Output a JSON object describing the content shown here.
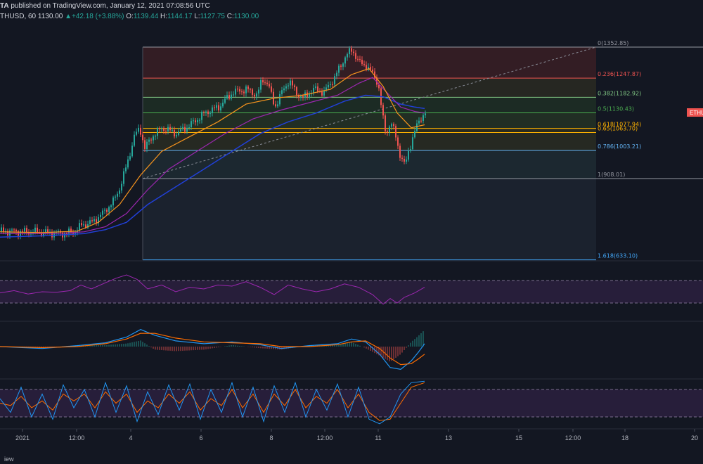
{
  "header": {
    "line1_prefix": "TA",
    "line1_text": " published on TradingView.com, January 12, 2021 07:08:56 UTC",
    "symbol": "THUSD, 60",
    "last": "1130.00",
    "change": "+42.18 (+3.88%)",
    "o_label": "O:",
    "o_value": "1139.44",
    "h_label": "H:",
    "h_value": "1144.17",
    "l_label": "L:",
    "l_value": "1127.75",
    "c_label": "C:",
    "c_value": "1130.00"
  },
  "colors": {
    "background": "#131722",
    "up_candle": "#26a69a",
    "down_candle": "#ef5350",
    "ema_fast": "#f7941d",
    "ema_mid": "#9c27b0",
    "ema_slow": "#2140d8",
    "rsi": "#9c27b0",
    "macd": "#2196f3",
    "signal": "#ff6d00"
  },
  "price_tag": "ETHU",
  "footer_text": "iew",
  "chart_data": {
    "type": "candlestick",
    "ylim": [
      620,
      1400
    ],
    "fib_levels": [
      {
        "ratio": "0",
        "price": "1352.85",
        "color": "#9598a1"
      },
      {
        "ratio": "0.236",
        "price": "1247.87",
        "color": "#ef5350"
      },
      {
        "ratio": "0.382",
        "price": "1182.92",
        "color": "#81c784"
      },
      {
        "ratio": "0.5",
        "price": "1130.43",
        "color": "#4caf50"
      },
      {
        "ratio": "0.618",
        "price": "1077.94",
        "color": "#ffb300"
      },
      {
        "ratio": "0.65",
        "price": "1063.70",
        "color": "#ffb300"
      },
      {
        "ratio": "0.786",
        "price": "1003.21",
        "color": "#64b5f6"
      },
      {
        "ratio": "1",
        "price": "908.01",
        "color": "#9598a1"
      },
      {
        "ratio": "1.618",
        "price": "633.10",
        "color": "#42a5f5"
      }
    ],
    "x_ticks": [
      "2021",
      "12:00",
      "4",
      "6",
      "8",
      "12:00",
      "11",
      "13",
      "15",
      "12:00",
      "18",
      "20"
    ],
    "price_path": [
      [
        0,
        730
      ],
      [
        40,
        728
      ],
      [
        90,
        722
      ],
      [
        105,
        728
      ],
      [
        115,
        750
      ],
      [
        130,
        760
      ],
      [
        145,
        790
      ],
      [
        160,
        830
      ],
      [
        170,
        880
      ],
      [
        180,
        960
      ],
      [
        190,
        1050
      ],
      [
        198,
        1080
      ],
      [
        205,
        1010
      ],
      [
        215,
        1050
      ],
      [
        230,
        1080
      ],
      [
        250,
        1060
      ],
      [
        270,
        1090
      ],
      [
        290,
        1130
      ],
      [
        310,
        1150
      ],
      [
        330,
        1200
      ],
      [
        350,
        1210
      ],
      [
        365,
        1190
      ],
      [
        372,
        1245
      ],
      [
        380,
        1230
      ],
      [
        390,
        1150
      ],
      [
        400,
        1200
      ],
      [
        410,
        1240
      ],
      [
        420,
        1200
      ],
      [
        430,
        1180
      ],
      [
        445,
        1210
      ],
      [
        460,
        1200
      ],
      [
        475,
        1250
      ],
      [
        490,
        1320
      ],
      [
        500,
        1345
      ],
      [
        510,
        1300
      ],
      [
        520,
        1290
      ],
      [
        530,
        1260
      ],
      [
        537,
        1230
      ],
      [
        543,
        1120
      ],
      [
        548,
        1060
      ],
      [
        555,
        1100
      ],
      [
        562,
        1050
      ],
      [
        568,
        990
      ],
      [
        575,
        950
      ],
      [
        580,
        1000
      ],
      [
        588,
        1060
      ],
      [
        596,
        1110
      ],
      [
        604,
        1130
      ]
    ],
    "ema_fast": [
      [
        0,
        728
      ],
      [
        60,
        725
      ],
      [
        110,
        730
      ],
      [
        140,
        760
      ],
      [
        170,
        820
      ],
      [
        200,
        920
      ],
      [
        230,
        1000
      ],
      [
        270,
        1050
      ],
      [
        310,
        1100
      ],
      [
        350,
        1160
      ],
      [
        390,
        1180
      ],
      [
        430,
        1190
      ],
      [
        470,
        1210
      ],
      [
        500,
        1260
      ],
      [
        525,
        1280
      ],
      [
        545,
        1220
      ],
      [
        565,
        1130
      ],
      [
        585,
        1080
      ],
      [
        604,
        1090
      ]
    ],
    "ema_mid": [
      [
        0,
        722
      ],
      [
        80,
        722
      ],
      [
        120,
        728
      ],
      [
        150,
        745
      ],
      [
        180,
        790
      ],
      [
        210,
        870
      ],
      [
        240,
        940
      ],
      [
        280,
        1000
      ],
      [
        320,
        1060
      ],
      [
        360,
        1110
      ],
      [
        400,
        1140
      ],
      [
        440,
        1165
      ],
      [
        480,
        1190
      ],
      [
        510,
        1230
      ],
      [
        530,
        1250
      ],
      [
        550,
        1200
      ],
      [
        570,
        1150
      ],
      [
        590,
        1135
      ],
      [
        604,
        1130
      ]
    ],
    "ema_slow": [
      [
        0,
        710
      ],
      [
        70,
        715
      ],
      [
        120,
        722
      ],
      [
        150,
        735
      ],
      [
        180,
        760
      ],
      [
        210,
        820
      ],
      [
        250,
        880
      ],
      [
        290,
        940
      ],
      [
        330,
        1000
      ],
      [
        370,
        1060
      ],
      [
        410,
        1100
      ],
      [
        450,
        1130
      ],
      [
        490,
        1170
      ],
      [
        520,
        1190
      ],
      [
        545,
        1185
      ],
      [
        570,
        1160
      ],
      [
        590,
        1150
      ],
      [
        604,
        1145
      ]
    ],
    "rsi": [
      [
        0,
        48
      ],
      [
        20,
        52
      ],
      [
        40,
        46
      ],
      [
        60,
        50
      ],
      [
        80,
        49
      ],
      [
        100,
        52
      ],
      [
        115,
        62
      ],
      [
        130,
        55
      ],
      [
        150,
        66
      ],
      [
        165,
        74
      ],
      [
        180,
        80
      ],
      [
        195,
        72
      ],
      [
        210,
        55
      ],
      [
        230,
        62
      ],
      [
        250,
        50
      ],
      [
        270,
        58
      ],
      [
        290,
        55
      ],
      [
        310,
        62
      ],
      [
        330,
        60
      ],
      [
        350,
        68
      ],
      [
        370,
        58
      ],
      [
        390,
        45
      ],
      [
        410,
        62
      ],
      [
        430,
        55
      ],
      [
        450,
        50
      ],
      [
        470,
        55
      ],
      [
        490,
        64
      ],
      [
        510,
        58
      ],
      [
        530,
        45
      ],
      [
        545,
        28
      ],
      [
        555,
        38
      ],
      [
        565,
        30
      ],
      [
        575,
        40
      ],
      [
        590,
        48
      ],
      [
        604,
        58
      ]
    ],
    "macd": [
      [
        0,
        0
      ],
      [
        60,
        -2
      ],
      [
        110,
        1
      ],
      [
        150,
        4
      ],
      [
        180,
        10
      ],
      [
        200,
        18
      ],
      [
        220,
        12
      ],
      [
        250,
        6
      ],
      [
        290,
        3
      ],
      [
        330,
        5
      ],
      [
        370,
        2
      ],
      [
        400,
        -2
      ],
      [
        440,
        1
      ],
      [
        480,
        3
      ],
      [
        500,
        8
      ],
      [
        520,
        5
      ],
      [
        540,
        -8
      ],
      [
        555,
        -22
      ],
      [
        570,
        -24
      ],
      [
        585,
        -15
      ],
      [
        595,
        -6
      ],
      [
        604,
        3
      ]
    ],
    "signal": [
      [
        0,
        0
      ],
      [
        60,
        -1
      ],
      [
        110,
        0
      ],
      [
        150,
        3
      ],
      [
        180,
        8
      ],
      [
        200,
        14
      ],
      [
        220,
        14
      ],
      [
        250,
        9
      ],
      [
        290,
        5
      ],
      [
        330,
        4
      ],
      [
        370,
        3
      ],
      [
        400,
        0
      ],
      [
        440,
        0
      ],
      [
        480,
        2
      ],
      [
        500,
        5
      ],
      [
        520,
        6
      ],
      [
        540,
        -2
      ],
      [
        555,
        -12
      ],
      [
        570,
        -19
      ],
      [
        585,
        -18
      ],
      [
        595,
        -13
      ],
      [
        604,
        -8
      ]
    ],
    "stoch_k": [
      [
        0,
        60
      ],
      [
        15,
        30
      ],
      [
        30,
        85
      ],
      [
        45,
        20
      ],
      [
        60,
        70
      ],
      [
        75,
        15
      ],
      [
        90,
        90
      ],
      [
        105,
        40
      ],
      [
        120,
        80
      ],
      [
        135,
        20
      ],
      [
        150,
        95
      ],
      [
        165,
        30
      ],
      [
        180,
        88
      ],
      [
        195,
        10
      ],
      [
        210,
        75
      ],
      [
        225,
        25
      ],
      [
        240,
        90
      ],
      [
        255,
        35
      ],
      [
        270,
        92
      ],
      [
        285,
        15
      ],
      [
        300,
        80
      ],
      [
        315,
        30
      ],
      [
        330,
        95
      ],
      [
        345,
        20
      ],
      [
        360,
        85
      ],
      [
        375,
        10
      ],
      [
        390,
        88
      ],
      [
        405,
        30
      ],
      [
        420,
        95
      ],
      [
        435,
        20
      ],
      [
        450,
        80
      ],
      [
        465,
        35
      ],
      [
        480,
        92
      ],
      [
        495,
        20
      ],
      [
        510,
        85
      ],
      [
        525,
        15
      ],
      [
        540,
        5
      ],
      [
        555,
        20
      ],
      [
        570,
        70
      ],
      [
        585,
        95
      ],
      [
        604,
        98
      ]
    ],
    "stoch_d": [
      [
        0,
        50
      ],
      [
        15,
        45
      ],
      [
        30,
        65
      ],
      [
        45,
        40
      ],
      [
        60,
        55
      ],
      [
        75,
        35
      ],
      [
        90,
        70
      ],
      [
        105,
        55
      ],
      [
        120,
        70
      ],
      [
        135,
        40
      ],
      [
        150,
        75
      ],
      [
        165,
        50
      ],
      [
        180,
        70
      ],
      [
        195,
        30
      ],
      [
        210,
        55
      ],
      [
        225,
        40
      ],
      [
        240,
        70
      ],
      [
        255,
        50
      ],
      [
        270,
        75
      ],
      [
        285,
        35
      ],
      [
        300,
        60
      ],
      [
        315,
        45
      ],
      [
        330,
        80
      ],
      [
        345,
        40
      ],
      [
        360,
        70
      ],
      [
        375,
        30
      ],
      [
        390,
        70
      ],
      [
        405,
        45
      ],
      [
        420,
        80
      ],
      [
        435,
        40
      ],
      [
        450,
        65
      ],
      [
        465,
        50
      ],
      [
        480,
        80
      ],
      [
        495,
        40
      ],
      [
        510,
        70
      ],
      [
        525,
        30
      ],
      [
        540,
        12
      ],
      [
        555,
        15
      ],
      [
        570,
        50
      ],
      [
        585,
        85
      ],
      [
        604,
        95
      ]
    ]
  }
}
